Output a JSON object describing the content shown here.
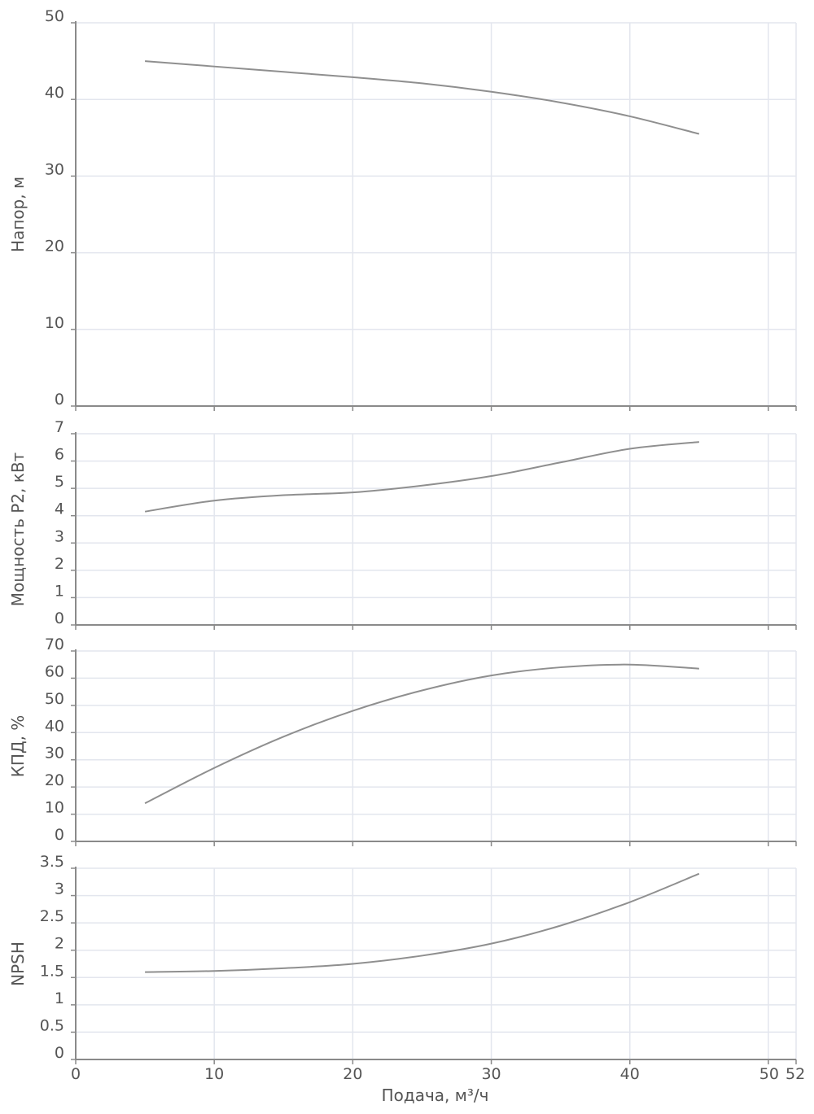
{
  "x_axis": {
    "label": "Подача, м³/ч",
    "ticks": [
      {
        "v": 0,
        "label": "0"
      },
      {
        "v": 10,
        "label": "10"
      },
      {
        "v": 20,
        "label": "20"
      },
      {
        "v": 30,
        "label": "30"
      },
      {
        "v": 40,
        "label": "40"
      },
      {
        "v": 50,
        "label": "50"
      },
      {
        "v": 52,
        "label": "52"
      }
    ],
    "grid": [
      0,
      10,
      20,
      30,
      40,
      50,
      52
    ],
    "range": [
      0,
      52
    ]
  },
  "colors": {
    "curve": "#8f8f8f",
    "grid": "#e3e6ee",
    "axis": "#8a8a8a",
    "text": "#555555"
  },
  "chart_data": [
    {
      "type": "line",
      "ylabel": "Напор, м",
      "ylim": [
        0,
        50
      ],
      "yticks": [
        0,
        10,
        20,
        30,
        40,
        50
      ],
      "ytick_labels": [
        "0",
        "10",
        "20",
        "30",
        "40",
        "50"
      ],
      "x": [
        5,
        10,
        15,
        20,
        25,
        30,
        35,
        40,
        45
      ],
      "y": [
        45,
        44.3,
        43.6,
        42.9,
        42.1,
        41.0,
        39.6,
        37.8,
        35.5
      ],
      "grid": true
    },
    {
      "type": "line",
      "ylabel": "Мощность Р2, кВт",
      "ylim": [
        0,
        7
      ],
      "yticks": [
        0,
        1,
        2,
        3,
        4,
        5,
        6,
        7
      ],
      "ytick_labels": [
        "0",
        "1",
        "2",
        "3",
        "4",
        "5",
        "6",
        "7"
      ],
      "x": [
        5,
        10,
        15,
        20,
        25,
        30,
        35,
        40,
        45
      ],
      "y": [
        4.15,
        4.55,
        4.75,
        4.85,
        5.1,
        5.45,
        5.95,
        6.45,
        6.7
      ],
      "grid": true
    },
    {
      "type": "line",
      "ylabel": "КПД, %",
      "ylim": [
        0,
        70
      ],
      "yticks": [
        0,
        10,
        20,
        30,
        40,
        50,
        60,
        70
      ],
      "ytick_labels": [
        "0",
        "10",
        "20",
        "30",
        "40",
        "50",
        "60",
        "70"
      ],
      "x": [
        5,
        10,
        15,
        20,
        25,
        30,
        35,
        40,
        45
      ],
      "y": [
        14,
        27,
        38.5,
        48,
        55.5,
        61,
        64,
        65,
        63.5
      ],
      "grid": true
    },
    {
      "type": "line",
      "ylabel": "NPSH",
      "ylim": [
        0,
        3.5
      ],
      "yticks": [
        0,
        0.5,
        1,
        1.5,
        2,
        2.5,
        3,
        3.5
      ],
      "ytick_labels": [
        "0",
        "0.5",
        "1",
        "1.5",
        "2",
        "2.5",
        "3",
        "3.5"
      ],
      "x": [
        5,
        10,
        15,
        20,
        25,
        30,
        35,
        40,
        45
      ],
      "y": [
        1.6,
        1.62,
        1.67,
        1.75,
        1.9,
        2.12,
        2.45,
        2.88,
        3.4
      ],
      "grid": true
    }
  ]
}
